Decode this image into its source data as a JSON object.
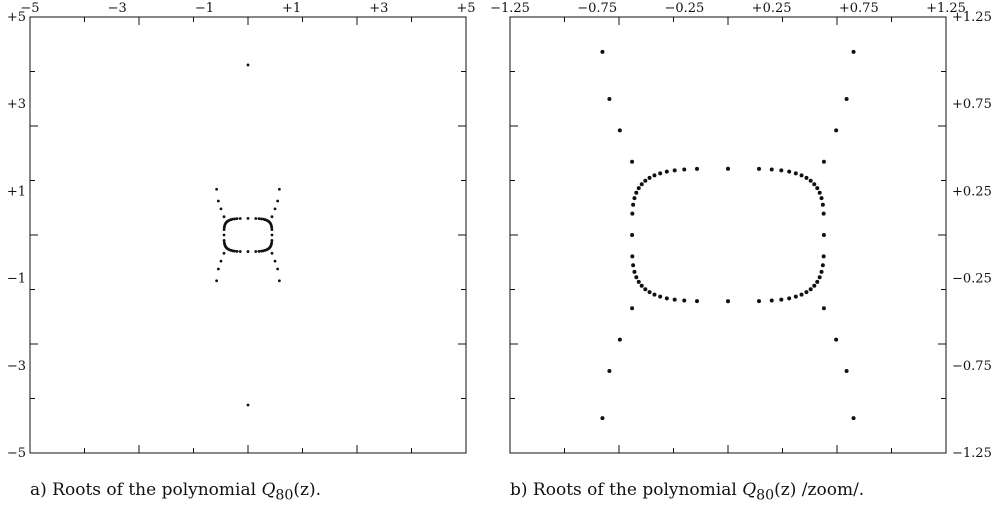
{
  "chart_data": [
    {
      "type": "scatter",
      "title": "",
      "caption": {
        "prefix": "a) Roots of the polynomial ",
        "func": "Q",
        "sub": "80",
        "arg": "(z)",
        "suffix": "."
      },
      "xlim": [
        -5,
        5
      ],
      "ylim": [
        -5,
        5
      ],
      "x_ticks": [
        -5,
        -3,
        -1,
        1,
        3,
        5
      ],
      "x_tick_labels": [
        "−5",
        "−3",
        "−1",
        "+1",
        "+3",
        "+5"
      ],
      "y_ticks": [
        5,
        3,
        1,
        -1,
        -3,
        -5
      ],
      "y_tick_labels": [
        "+5",
        "+3",
        "+1",
        "−1",
        "−3",
        "−5"
      ],
      "x_tick_position": "top",
      "y_tick_position": "left",
      "grid": false,
      "legend": "none",
      "point_color": "#111111",
      "shape": "rounded-oval loop of roots centered at origin with four arms",
      "oval": {
        "cx": 0,
        "cy": 0,
        "a": 0.55,
        "b": 0.38,
        "n": 60
      },
      "arms": [
        [
          0.55,
          0.42
        ],
        [
          0.62,
          0.6
        ],
        [
          0.68,
          0.78
        ],
        [
          0.72,
          1.05
        ],
        [
          -0.55,
          0.42
        ],
        [
          -0.62,
          0.6
        ],
        [
          -0.68,
          0.78
        ],
        [
          -0.72,
          1.05
        ],
        [
          0.55,
          -0.42
        ],
        [
          0.62,
          -0.6
        ],
        [
          0.68,
          -0.78
        ],
        [
          0.72,
          -1.05
        ],
        [
          -0.55,
          -0.42
        ],
        [
          -0.62,
          -0.6
        ],
        [
          -0.68,
          -0.78
        ],
        [
          -0.72,
          -1.05
        ]
      ],
      "extra_points": [
        [
          0,
          3.9
        ],
        [
          0,
          -3.9
        ]
      ]
    },
    {
      "type": "scatter",
      "title": "",
      "caption": {
        "prefix": "b) Roots of the polynomial ",
        "func": "Q",
        "sub": "80",
        "arg": "(z)",
        "suffix": " /zoom/."
      },
      "xlim": [
        -1.25,
        1.25
      ],
      "ylim": [
        -1.25,
        1.25
      ],
      "x_ticks": [
        -1.25,
        -0.75,
        -0.25,
        0.25,
        0.75,
        1.25
      ],
      "x_tick_labels": [
        "−1.25",
        "−0.75",
        "−0.25",
        "+0.25",
        "+0.75",
        "+1.25"
      ],
      "y_ticks": [
        1.25,
        0.75,
        0.25,
        -0.25,
        -0.75,
        -1.25
      ],
      "y_tick_labels": [
        "+1.25",
        "+0.75",
        "+0.25",
        "−0.25",
        "−0.75",
        "−1.25"
      ],
      "x_tick_position": "top",
      "y_tick_position": "right",
      "grid": false,
      "legend": "none",
      "point_color": "#111111",
      "shape": "rounded-oval loop of roots centered at origin with four arms",
      "oval": {
        "cx": 0,
        "cy": 0,
        "a": 0.55,
        "b": 0.38,
        "n": 60
      },
      "arms": [
        [
          0.55,
          0.42
        ],
        [
          0.62,
          0.6
        ],
        [
          0.68,
          0.78
        ],
        [
          0.72,
          1.05
        ],
        [
          -0.55,
          0.42
        ],
        [
          -0.62,
          0.6
        ],
        [
          -0.68,
          0.78
        ],
        [
          -0.72,
          1.05
        ],
        [
          0.55,
          -0.42
        ],
        [
          0.62,
          -0.6
        ],
        [
          0.68,
          -0.78
        ],
        [
          0.72,
          -1.05
        ],
        [
          -0.55,
          -0.42
        ],
        [
          -0.62,
          -0.6
        ],
        [
          -0.68,
          -0.78
        ],
        [
          -0.72,
          -1.05
        ]
      ],
      "extra_points": []
    }
  ]
}
